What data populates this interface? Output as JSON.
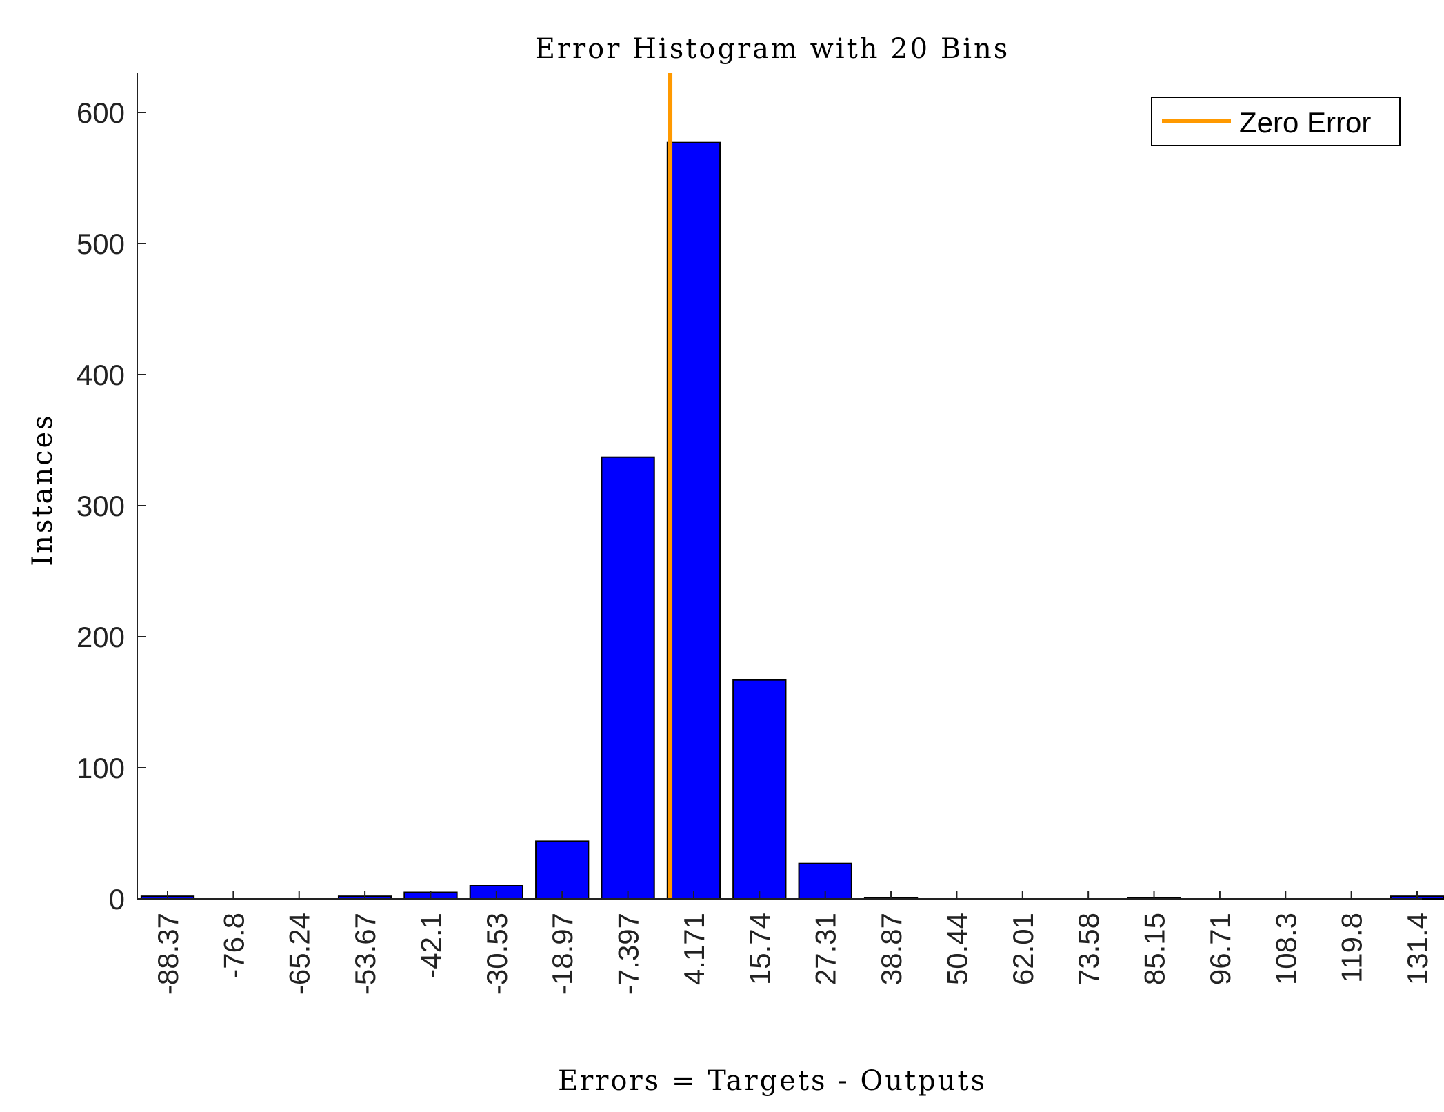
{
  "chart_data": {
    "type": "bar",
    "title": "Error Histogram with 20 Bins",
    "xlabel": "Errors = Targets - Outputs",
    "ylabel": "Instances",
    "categories": [
      "-88.37",
      "-76.8",
      "-65.24",
      "-53.67",
      "-42.1",
      "-30.53",
      "-18.97",
      "-7.397",
      "4.171",
      "15.74",
      "27.31",
      "38.87",
      "50.44",
      "62.01",
      "73.58",
      "85.15",
      "96.71",
      "108.3",
      "119.8",
      "131.4"
    ],
    "values": [
      2,
      0,
      0,
      2,
      5,
      10,
      44,
      337,
      577,
      167,
      27,
      1,
      0,
      0,
      0,
      1,
      0,
      0,
      0,
      2
    ],
    "ylim": [
      0,
      630
    ],
    "yticks": [
      "0",
      "100",
      "200",
      "300",
      "400",
      "500",
      "600"
    ],
    "zero_line_x": 0,
    "legend": {
      "label": "Zero Error",
      "position": "top-right"
    },
    "colors": {
      "bars": "#0000ff",
      "bar_edge": "#000000",
      "zero_line": "#ff9900"
    },
    "grid": false
  }
}
